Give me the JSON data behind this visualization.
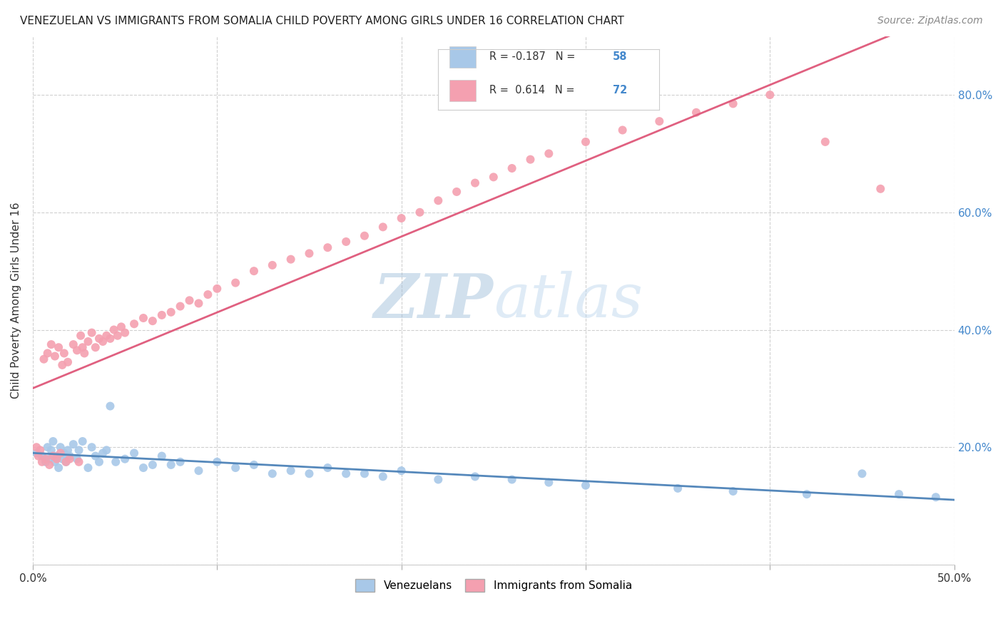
{
  "title": "VENEZUELAN VS IMMIGRANTS FROM SOMALIA CHILD POVERTY AMONG GIRLS UNDER 16 CORRELATION CHART",
  "source": "Source: ZipAtlas.com",
  "ylabel": "Child Poverty Among Girls Under 16",
  "xlim": [
    0.0,
    0.5
  ],
  "ylim": [
    0.0,
    0.9
  ],
  "background_color": "#ffffff",
  "grid_color": "#d0d0d0",
  "venezuelan_color": "#a8c8e8",
  "somalia_color": "#f4a0b0",
  "venezuelan_line_color": "#5588bb",
  "somalia_line_color": "#e06080",
  "venezuelan_R": -0.187,
  "venezuelan_N": 58,
  "somalia_R": 0.614,
  "somalia_N": 72,
  "text_color_blue": "#4488cc",
  "text_color_dark": "#333333",
  "watermark_color": "#c8dff0",
  "venezuelan_x": [
    0.002,
    0.005,
    0.007,
    0.008,
    0.009,
    0.01,
    0.011,
    0.012,
    0.013,
    0.014,
    0.015,
    0.016,
    0.017,
    0.018,
    0.019,
    0.02,
    0.022,
    0.024,
    0.025,
    0.027,
    0.03,
    0.032,
    0.034,
    0.036,
    0.038,
    0.04,
    0.042,
    0.045,
    0.05,
    0.055,
    0.06,
    0.065,
    0.07,
    0.075,
    0.08,
    0.09,
    0.1,
    0.11,
    0.12,
    0.13,
    0.14,
    0.15,
    0.16,
    0.17,
    0.18,
    0.19,
    0.2,
    0.22,
    0.24,
    0.26,
    0.28,
    0.3,
    0.35,
    0.38,
    0.42,
    0.45,
    0.47,
    0.49
  ],
  "venezuelan_y": [
    0.19,
    0.185,
    0.175,
    0.2,
    0.18,
    0.195,
    0.21,
    0.175,
    0.185,
    0.165,
    0.2,
    0.18,
    0.19,
    0.175,
    0.195,
    0.185,
    0.205,
    0.18,
    0.195,
    0.21,
    0.165,
    0.2,
    0.185,
    0.175,
    0.19,
    0.195,
    0.27,
    0.175,
    0.18,
    0.19,
    0.165,
    0.17,
    0.185,
    0.17,
    0.175,
    0.16,
    0.175,
    0.165,
    0.17,
    0.155,
    0.16,
    0.155,
    0.165,
    0.155,
    0.155,
    0.15,
    0.16,
    0.145,
    0.15,
    0.145,
    0.14,
    0.135,
    0.13,
    0.125,
    0.12,
    0.155,
    0.12,
    0.115
  ],
  "somalia_x": [
    0.002,
    0.003,
    0.004,
    0.005,
    0.006,
    0.007,
    0.008,
    0.009,
    0.01,
    0.011,
    0.012,
    0.013,
    0.014,
    0.015,
    0.016,
    0.017,
    0.018,
    0.019,
    0.02,
    0.022,
    0.024,
    0.025,
    0.026,
    0.027,
    0.028,
    0.03,
    0.032,
    0.034,
    0.036,
    0.038,
    0.04,
    0.042,
    0.044,
    0.046,
    0.048,
    0.05,
    0.055,
    0.06,
    0.065,
    0.07,
    0.075,
    0.08,
    0.085,
    0.09,
    0.095,
    0.1,
    0.11,
    0.12,
    0.13,
    0.14,
    0.15,
    0.16,
    0.17,
    0.18,
    0.19,
    0.2,
    0.21,
    0.22,
    0.23,
    0.24,
    0.25,
    0.26,
    0.27,
    0.28,
    0.3,
    0.32,
    0.34,
    0.36,
    0.38,
    0.4,
    0.43,
    0.46
  ],
  "somalia_y": [
    0.2,
    0.185,
    0.195,
    0.175,
    0.35,
    0.18,
    0.36,
    0.17,
    0.375,
    0.185,
    0.355,
    0.18,
    0.37,
    0.19,
    0.34,
    0.36,
    0.175,
    0.345,
    0.18,
    0.375,
    0.365,
    0.175,
    0.39,
    0.37,
    0.36,
    0.38,
    0.395,
    0.37,
    0.385,
    0.38,
    0.39,
    0.385,
    0.4,
    0.39,
    0.405,
    0.395,
    0.41,
    0.42,
    0.415,
    0.425,
    0.43,
    0.44,
    0.45,
    0.445,
    0.46,
    0.47,
    0.48,
    0.5,
    0.51,
    0.52,
    0.53,
    0.54,
    0.55,
    0.56,
    0.575,
    0.59,
    0.6,
    0.62,
    0.635,
    0.65,
    0.66,
    0.675,
    0.69,
    0.7,
    0.72,
    0.74,
    0.755,
    0.77,
    0.785,
    0.8,
    0.72,
    0.64
  ]
}
